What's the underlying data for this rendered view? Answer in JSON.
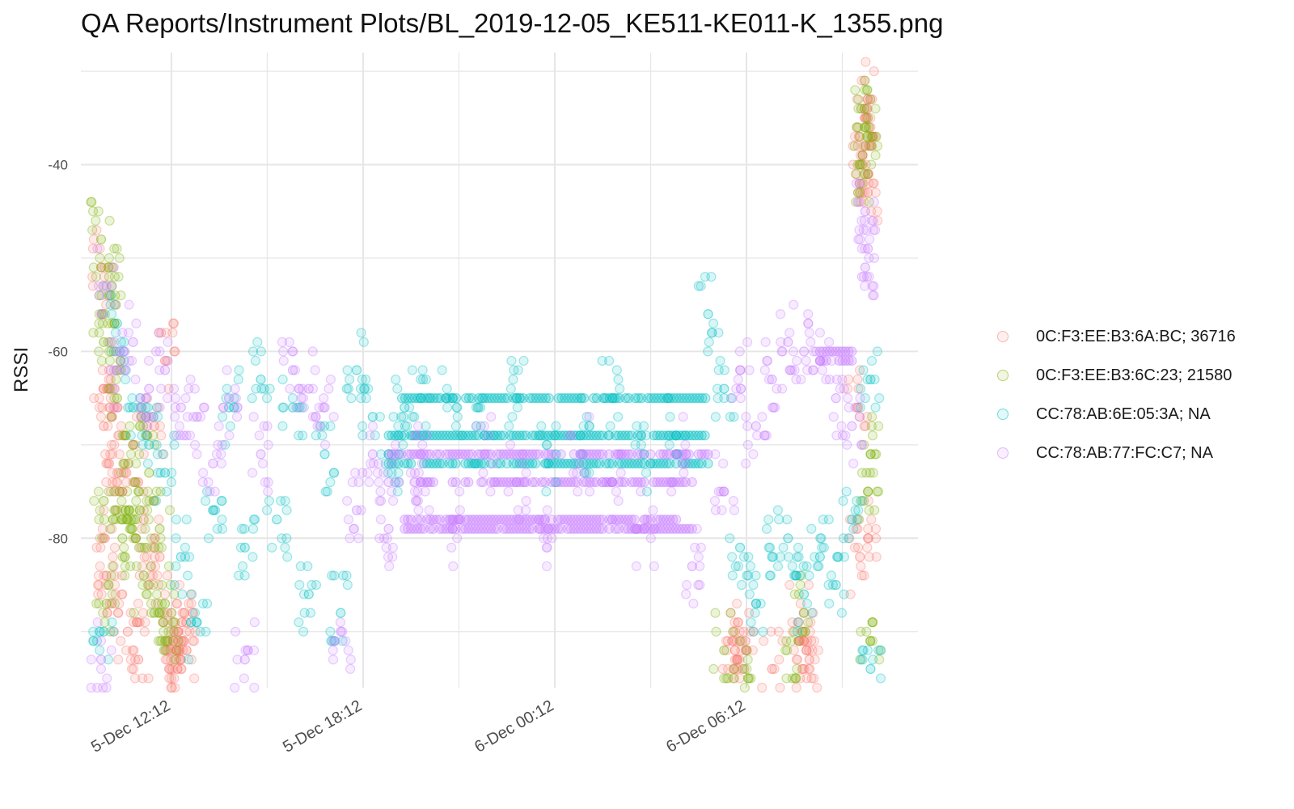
{
  "chart_data": {
    "type": "scatter",
    "title": "QA Reports/Instrument Plots/BL_2019-12-05_KE511-KE011-K_1355.png",
    "xlabel": "",
    "ylabel": "RSSI",
    "x_type": "datetime",
    "xlim": [
      "2019-12-05 09:22",
      "2019-12-06 11:34"
    ],
    "ylim": [
      -96,
      -28
    ],
    "x_ticks": [
      "2019-12-05 12:12",
      "2019-12-05 18:12",
      "2019-12-06 00:12",
      "2019-12-06 06:12"
    ],
    "x_tick_labels": [
      "5-Dec 12:12",
      "5-Dec 18:12",
      "6-Dec 00:12",
      "6-Dec 06:12"
    ],
    "y_ticks": [
      -40,
      -60,
      -80
    ],
    "y_tick_labels": [
      "-40",
      "-60",
      "-80"
    ],
    "grid": true,
    "legend_position": "right",
    "series": [
      {
        "name": "0C:F3:EE:B3:6A:BC; 36716",
        "color": "#F8766D",
        "points": [
          [
            "2019-12-05 10:00",
            -51
          ],
          [
            "2019-12-05 10:05",
            -64
          ],
          [
            "2019-12-05 10:05",
            -68
          ],
          [
            "2019-12-05 10:05",
            -80
          ],
          [
            "2019-12-05 10:10",
            -84
          ],
          [
            "2019-12-05 10:15",
            -72
          ],
          [
            "2019-12-05 10:20",
            -87
          ],
          [
            "2019-12-05 10:30",
            -66
          ],
          [
            "2019-12-05 10:40",
            -75
          ],
          [
            "2019-12-05 10:50",
            -90
          ],
          [
            "2019-12-05 11:00",
            -70
          ],
          [
            "2019-12-05 11:10",
            -93
          ],
          [
            "2019-12-05 11:20",
            -78
          ],
          [
            "2019-12-05 11:30",
            -85
          ],
          [
            "2019-12-05 11:40",
            -68
          ],
          [
            "2019-12-05 11:50",
            -82
          ],
          [
            "2019-12-05 12:00",
            -61
          ],
          [
            "2019-12-05 12:10",
            -92
          ],
          [
            "2019-12-05 12:15",
            -91
          ],
          [
            "2019-12-05 12:20",
            -92
          ],
          [
            "2019-12-05 12:25",
            -90
          ],
          [
            "2019-12-05 12:30",
            -93
          ],
          [
            "2019-12-05 12:35",
            -91
          ],
          [
            "2019-12-05 12:40",
            -89
          ],
          [
            "2019-12-06 05:45",
            -91
          ],
          [
            "2019-12-06 05:55",
            -94
          ],
          [
            "2019-12-06 06:05",
            -94
          ],
          [
            "2019-12-06 06:10",
            -91
          ],
          [
            "2019-12-06 07:00",
            -94
          ],
          [
            "2019-12-06 07:50",
            -89
          ],
          [
            "2019-12-06 08:00",
            -91
          ],
          [
            "2019-12-06 08:05",
            -92
          ],
          [
            "2019-12-06 08:10",
            -93
          ],
          [
            "2019-12-06 09:40",
            -66
          ],
          [
            "2019-12-06 09:45",
            -82
          ],
          [
            "2019-12-06 09:50",
            -40
          ],
          [
            "2019-12-06 09:50",
            -39
          ],
          [
            "2019-12-06 09:55",
            -38
          ],
          [
            "2019-12-06 09:55",
            -35
          ],
          [
            "2019-12-06 10:00",
            -33
          ],
          [
            "2019-12-06 10:00",
            -43
          ],
          [
            "2019-12-06 10:00",
            -80
          ]
        ]
      },
      {
        "name": "0C:F3:EE:B3:6C:23; 21580",
        "color": "#7CAE00",
        "points": [
          [
            "2019-12-05 10:00",
            -48
          ],
          [
            "2019-12-05 10:05",
            -59
          ],
          [
            "2019-12-05 10:05",
            -76
          ],
          [
            "2019-12-05 10:10",
            -87
          ],
          [
            "2019-12-05 10:15",
            -54
          ],
          [
            "2019-12-05 10:20",
            -53
          ],
          [
            "2019-12-05 10:25",
            -57
          ],
          [
            "2019-12-05 10:30",
            -65
          ],
          [
            "2019-12-05 10:35",
            -75
          ],
          [
            "2019-12-05 10:40",
            -80
          ],
          [
            "2019-12-05 10:50",
            -78
          ],
          [
            "2019-12-05 11:00",
            -70
          ],
          [
            "2019-12-05 11:05",
            -80
          ],
          [
            "2019-12-05 11:10",
            -75
          ],
          [
            "2019-12-05 11:20",
            -84
          ],
          [
            "2019-12-05 11:30",
            -73
          ],
          [
            "2019-12-05 11:40",
            -88
          ],
          [
            "2019-12-05 11:50",
            -79
          ],
          [
            "2019-12-05 12:00",
            -87
          ],
          [
            "2019-12-05 12:05",
            -91
          ],
          [
            "2019-12-06 05:30",
            -92
          ],
          [
            "2019-12-06 06:15",
            -95
          ],
          [
            "2019-12-06 07:45",
            -95
          ],
          [
            "2019-12-06 08:00",
            -88
          ],
          [
            "2019-12-06 09:55",
            -41
          ],
          [
            "2019-12-06 09:55",
            -36
          ],
          [
            "2019-12-06 10:00",
            -37
          ],
          [
            "2019-12-06 10:00",
            -35
          ],
          [
            "2019-12-06 10:00",
            -75
          ],
          [
            "2019-12-06 10:05",
            -91
          ],
          [
            "2019-12-06 10:05",
            -71
          ]
        ]
      },
      {
        "name": "CC:78:AB:6E:05:3A; NA",
        "color": "#00BFC4",
        "points": [
          [
            "2019-12-05 10:05",
            -90
          ],
          [
            "2019-12-05 10:30",
            -57
          ],
          [
            "2019-12-05 11:00",
            -66
          ],
          [
            "2019-12-05 11:30",
            -70
          ],
          [
            "2019-12-05 12:00",
            -73
          ],
          [
            "2019-12-05 12:30",
            -82
          ],
          [
            "2019-12-05 13:00",
            -89
          ],
          [
            "2019-12-05 13:30",
            -77
          ],
          [
            "2019-12-05 14:00",
            -66
          ],
          [
            "2019-12-05 14:30",
            -81
          ],
          [
            "2019-12-05 15:00",
            -63
          ],
          [
            "2019-12-05 15:30",
            -78
          ],
          [
            "2019-12-05 16:00",
            -66
          ],
          [
            "2019-12-05 16:30",
            -86
          ],
          [
            "2019-12-05 17:00",
            -71
          ],
          [
            "2019-12-05 17:30",
            -88
          ],
          [
            "2019-12-05 18:00",
            -62
          ],
          [
            "2019-12-05 18:30",
            -67
          ],
          [
            "2019-12-05 19:00",
            -71
          ],
          [
            "2019-12-05 19:30",
            -66
          ],
          [
            "2019-12-05 20:00",
            -65
          ],
          [
            "2019-12-05 21:00",
            -65
          ],
          [
            "2019-12-05 22:00",
            -69
          ],
          [
            "2019-12-05 23:00",
            -65
          ],
          [
            "2019-12-06 00:00",
            -72
          ],
          [
            "2019-12-06 01:00",
            -69
          ],
          [
            "2019-12-06 02:00",
            -65
          ],
          [
            "2019-12-06 03:00",
            -72
          ],
          [
            "2019-12-06 04:00",
            -69
          ],
          [
            "2019-12-06 05:00",
            -56
          ],
          [
            "2019-12-06 05:30",
            -64
          ],
          [
            "2019-12-06 06:00",
            -81
          ],
          [
            "2019-12-06 06:30",
            -87
          ],
          [
            "2019-12-06 07:00",
            -82
          ],
          [
            "2019-12-06 07:30",
            -80
          ],
          [
            "2019-12-06 08:00",
            -86
          ],
          [
            "2019-12-06 08:30",
            -82
          ],
          [
            "2019-12-06 09:00",
            -85
          ],
          [
            "2019-12-06 09:30",
            -78
          ],
          [
            "2019-12-06 10:05",
            -94
          ],
          [
            "2019-12-06 10:05",
            -63
          ]
        ]
      },
      {
        "name": "CC:78:AB:77:FC:C7; NA",
        "color": "#C77CFF",
        "points": [
          [
            "2019-12-05 10:00",
            -93
          ],
          [
            "2019-12-05 10:10",
            -53
          ],
          [
            "2019-12-05 10:30",
            -62
          ],
          [
            "2019-12-05 11:00",
            -59
          ],
          [
            "2019-12-05 11:30",
            -64
          ],
          [
            "2019-12-05 12:00",
            -62
          ],
          [
            "2019-12-05 12:30",
            -66
          ],
          [
            "2019-12-05 13:00",
            -67
          ],
          [
            "2019-12-05 13:30",
            -72
          ],
          [
            "2019-12-05 14:00",
            -65
          ],
          [
            "2019-12-05 14:30",
            -93
          ],
          [
            "2019-12-05 15:00",
            -71
          ],
          [
            "2019-12-05 16:00",
            -62
          ],
          [
            "2019-12-05 16:30",
            -64
          ],
          [
            "2019-12-05 17:00",
            -66
          ],
          [
            "2019-12-05 17:30",
            -90
          ],
          [
            "2019-12-05 18:00",
            -77
          ],
          [
            "2019-12-05 18:30",
            -71
          ],
          [
            "2019-12-05 19:00",
            -74
          ],
          [
            "2019-12-05 19:00",
            -79
          ],
          [
            "2019-12-05 20:00",
            -71
          ],
          [
            "2019-12-05 20:00",
            -74
          ],
          [
            "2019-12-05 21:00",
            -79
          ],
          [
            "2019-12-05 22:00",
            -71
          ],
          [
            "2019-12-05 23:00",
            -74
          ],
          [
            "2019-12-06 00:00",
            -79
          ],
          [
            "2019-12-06 01:00",
            -71
          ],
          [
            "2019-12-06 02:00",
            -74
          ],
          [
            "2019-12-06 03:00",
            -79
          ],
          [
            "2019-12-06 04:00",
            -71
          ],
          [
            "2019-12-06 04:30",
            -83
          ],
          [
            "2019-12-06 05:30",
            -75
          ],
          [
            "2019-12-06 06:00",
            -62
          ],
          [
            "2019-12-06 06:30",
            -68
          ],
          [
            "2019-12-06 07:00",
            -63
          ],
          [
            "2019-12-06 07:30",
            -59
          ],
          [
            "2019-12-06 08:00",
            -60
          ],
          [
            "2019-12-06 08:30",
            -61
          ],
          [
            "2019-12-06 09:00",
            -65
          ],
          [
            "2019-12-06 09:30",
            -68
          ],
          [
            "2019-12-06 09:55",
            -45
          ],
          [
            "2019-12-06 09:55",
            -51
          ],
          [
            "2019-12-06 10:00",
            -49
          ]
        ]
      }
    ]
  }
}
